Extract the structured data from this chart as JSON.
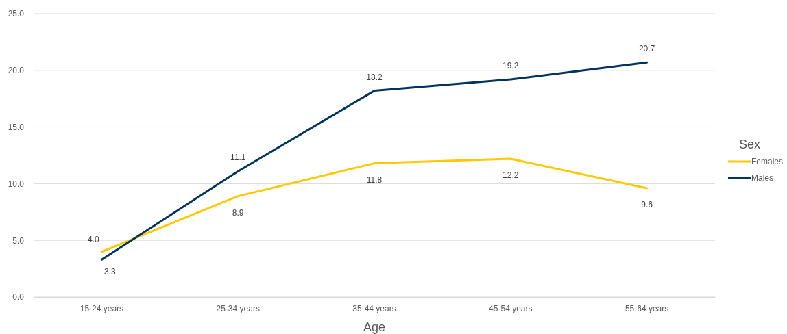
{
  "chart_data": {
    "type": "line",
    "xlabel": "Age",
    "legend_title": "Sex",
    "categories": [
      "15-24 years",
      "25-34 years",
      "35-44 years",
      "45-54 years",
      "55-64 years"
    ],
    "series": [
      {
        "name": "Females",
        "color": "#ffc805",
        "values": [
          4.0,
          8.9,
          11.8,
          12.2,
          9.6
        ],
        "value_labels": [
          "4.0",
          "8.9",
          "11.8",
          "12.2",
          "9.6"
        ]
      },
      {
        "name": "Males",
        "color": "#00335e",
        "values": [
          3.3,
          11.1,
          18.2,
          19.2,
          20.7
        ],
        "value_labels": [
          "3.3",
          "11.1",
          "18.2",
          "19.2",
          "20.7"
        ]
      }
    ],
    "ylim": [
      0,
      25
    ],
    "yticks": [
      {
        "value": 0,
        "label": "0.0"
      },
      {
        "value": 5,
        "label": "5.0"
      },
      {
        "value": 10,
        "label": "10.0"
      },
      {
        "value": 15,
        "label": "15.0"
      },
      {
        "value": 20,
        "label": "20.0"
      },
      {
        "value": 25,
        "label": "25.0"
      }
    ],
    "grid": "y",
    "legend": "right",
    "marker": "none",
    "line_style": "solid"
  }
}
